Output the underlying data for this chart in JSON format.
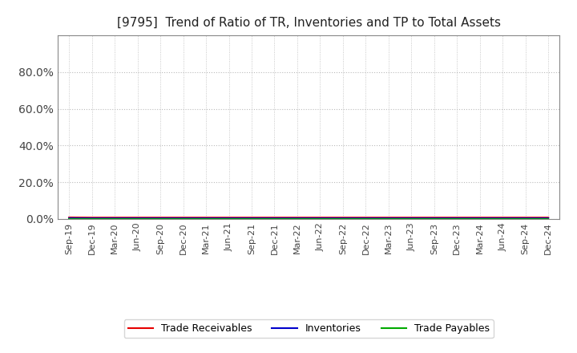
{
  "title": "[9795]  Trend of Ratio of TR, Inventories and TP to Total Assets",
  "x_labels": [
    "Sep-19",
    "Dec-19",
    "Mar-20",
    "Jun-20",
    "Sep-20",
    "Dec-20",
    "Mar-21",
    "Jun-21",
    "Sep-21",
    "Dec-21",
    "Mar-22",
    "Jun-22",
    "Sep-22",
    "Dec-22",
    "Mar-23",
    "Jun-23",
    "Sep-23",
    "Dec-23",
    "Mar-24",
    "Jun-24",
    "Sep-24",
    "Dec-24"
  ],
  "trade_receivables": [
    0.008,
    0.007,
    0.007,
    0.007,
    0.007,
    0.007,
    0.007,
    0.007,
    0.007,
    0.007,
    0.007,
    0.007,
    0.007,
    0.007,
    0.007,
    0.007,
    0.007,
    0.007,
    0.007,
    0.007,
    0.007,
    0.007
  ],
  "inventories": [
    0.004,
    0.003,
    0.003,
    0.003,
    0.003,
    0.003,
    0.003,
    0.003,
    0.003,
    0.003,
    0.003,
    0.003,
    0.003,
    0.003,
    0.003,
    0.003,
    0.003,
    0.003,
    0.003,
    0.003,
    0.003,
    0.003
  ],
  "trade_payables": [
    0.001,
    0.001,
    0.001,
    0.001,
    0.001,
    0.001,
    0.001,
    0.001,
    0.001,
    0.001,
    0.001,
    0.001,
    0.001,
    0.001,
    0.001,
    0.001,
    0.001,
    0.001,
    0.001,
    0.001,
    0.001,
    0.001
  ],
  "color_tr": "#e60000",
  "color_inv": "#0000cc",
  "color_tp": "#00aa00",
  "ylim": [
    0.0,
    1.0
  ],
  "yticks": [
    0.0,
    0.2,
    0.4,
    0.6,
    0.8
  ],
  "background_color": "#ffffff",
  "plot_bg_color": "#ffffff",
  "grid_color": "#bbbbbb",
  "title_fontsize": 11,
  "tick_fontsize": 8,
  "legend_labels": [
    "Trade Receivables",
    "Inventories",
    "Trade Payables"
  ]
}
